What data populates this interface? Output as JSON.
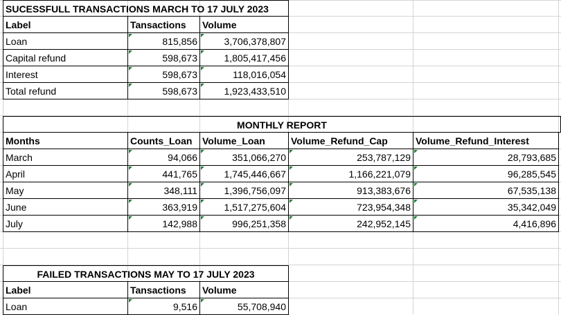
{
  "successful": {
    "title": "SUCESSFULL TRANSACTIONS MARCH TO 17 JULY 2023",
    "headers": [
      "Label",
      "Tansactions",
      "Volume"
    ],
    "rows": [
      {
        "label": "Loan",
        "transactions": "815,856",
        "volume": "3,706,378,807"
      },
      {
        "label": "Capital refund",
        "transactions": "598,673",
        "volume": "1,805,417,456"
      },
      {
        "label": "Interest",
        "transactions": "598,673",
        "volume": "118,016,054"
      },
      {
        "label": "Total refund",
        "transactions": "598,673",
        "volume": "1,923,433,510"
      }
    ]
  },
  "monthly": {
    "title": "MONTHLY REPORT",
    "headers": [
      "Months",
      "Counts_Loan",
      "Volume_Loan",
      "Volume_Refund_Cap",
      "Volume_Refund_Interest"
    ],
    "rows": [
      {
        "month": "March",
        "counts_loan": "94,066",
        "volume_loan": "351,066,270",
        "refund_cap": "253,787,129",
        "refund_interest": "28,793,685"
      },
      {
        "month": "April",
        "counts_loan": "441,765",
        "volume_loan": "1,745,446,667",
        "refund_cap": "1,166,221,079",
        "refund_interest": "96,285,545"
      },
      {
        "month": "May",
        "counts_loan": "348,111",
        "volume_loan": "1,396,756,097",
        "refund_cap": "913,383,676",
        "refund_interest": "67,535,138"
      },
      {
        "month": "June",
        "counts_loan": "363,919",
        "volume_loan": "1,517,275,604",
        "refund_cap": "723,954,348",
        "refund_interest": "35,342,049"
      },
      {
        "month": "July",
        "counts_loan": "142,988",
        "volume_loan": "996,251,358",
        "refund_cap": "242,952,145",
        "refund_interest": "4,416,896"
      }
    ]
  },
  "failed": {
    "title": "FAILED TRANSACTIONS MAY TO 17 JULY 2023",
    "headers": [
      "Label",
      "Tansactions",
      "Volume"
    ],
    "rows": [
      {
        "label": "Loan",
        "transactions": "9,516",
        "volume": "55,708,940"
      }
    ]
  },
  "colors": {
    "gridline": "#d4d4d4",
    "border": "#000000",
    "error_marker": "#1e7d32"
  }
}
